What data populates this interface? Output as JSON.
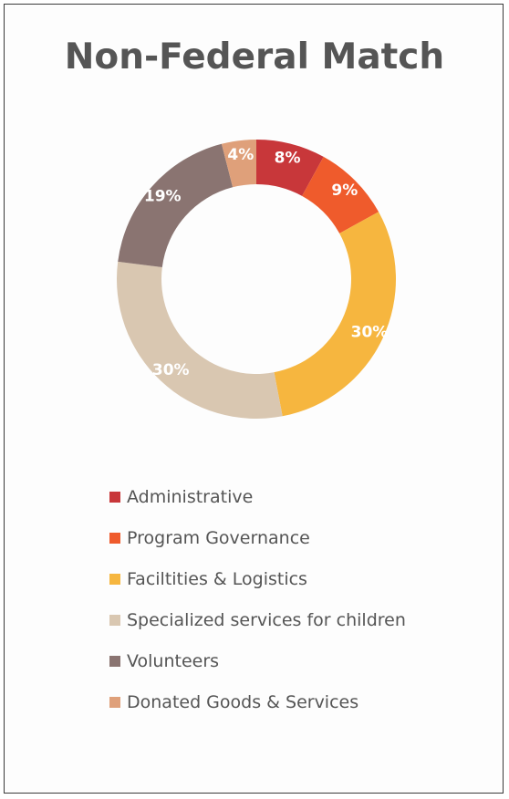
{
  "chart_data": {
    "type": "pie",
    "title": "Non-Federal Match",
    "style": "donut",
    "legend_position": "bottom",
    "categories": [
      "Administrative",
      "Program Governance",
      "Faciltities & Logistics",
      "Specialized services for children",
      "Volunteers",
      "Donated Goods & Services"
    ],
    "values": [
      8,
      9,
      30,
      30,
      19,
      4
    ],
    "labels": [
      "8%",
      "9%",
      "30%",
      "30%",
      "19%",
      "4%"
    ],
    "colors": [
      "#c8373a",
      "#ef5b2c",
      "#f6b63f",
      "#d9c7b1",
      "#8a7471",
      "#dfa07a"
    ]
  }
}
